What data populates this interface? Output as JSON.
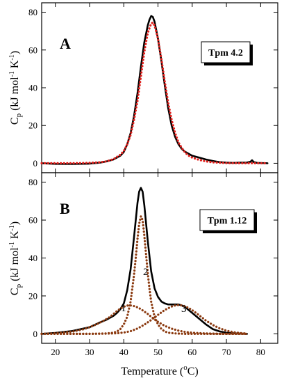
{
  "chart_data": [
    {
      "panel": "A",
      "type": "line",
      "label_box": "Tpm 4.2",
      "xlim": [
        16,
        85
      ],
      "ylim": [
        -5,
        85
      ],
      "yticks": [
        0,
        20,
        40,
        60,
        80
      ],
      "series": [
        {
          "style": "solid",
          "color": "#000000",
          "x": [
            16,
            20,
            25,
            30,
            33,
            35,
            37,
            39,
            40,
            41,
            42,
            43,
            44,
            45,
            46,
            47,
            47.5,
            48,
            48.5,
            49,
            50,
            51,
            52,
            53,
            54,
            55,
            56,
            57,
            58,
            59,
            60,
            62,
            64,
            66,
            68,
            70,
            72,
            74,
            76,
            77,
            77.5,
            78,
            79,
            82
          ],
          "y": [
            0,
            -0.3,
            -0.4,
            -0.2,
            0.3,
            1,
            2,
            4,
            6,
            10,
            16,
            25,
            37,
            51,
            64,
            73,
            76,
            78,
            77.5,
            75,
            66,
            54,
            41,
            29,
            20,
            14,
            10,
            7.5,
            6,
            5,
            4,
            3,
            2,
            1.2,
            0.6,
            0.3,
            0.2,
            0.3,
            0.4,
            0.8,
            1.6,
            0.6,
            0.2,
            0
          ]
        },
        {
          "style": "dotted",
          "color": "#e0201c",
          "x": [
            16,
            20,
            25,
            30,
            33,
            35,
            37,
            39,
            40,
            41,
            42,
            43,
            44,
            45,
            46,
            47,
            48,
            48.5,
            49,
            50,
            51,
            52,
            53,
            54,
            55,
            56,
            57,
            58,
            59,
            60,
            62,
            64,
            66,
            68,
            70,
            72,
            74,
            76,
            78,
            80,
            82
          ],
          "y": [
            0,
            0,
            0,
            0.2,
            0.5,
            1,
            2.2,
            4.5,
            6.5,
            10,
            15,
            23,
            33,
            46,
            59,
            69,
            74,
            74.5,
            73,
            66,
            55,
            43,
            32,
            23,
            16,
            11,
            8,
            5.5,
            4,
            3,
            1.8,
            1,
            0.5,
            0.3,
            0.1,
            0.1,
            0,
            0,
            0,
            0,
            0
          ]
        }
      ]
    },
    {
      "panel": "B",
      "type": "line",
      "label_box": "Tpm 1.12",
      "xlim": [
        16,
        85
      ],
      "ylim": [
        -5,
        85
      ],
      "xticks": [
        20,
        30,
        40,
        50,
        60,
        70,
        80
      ],
      "yticks": [
        0,
        20,
        40,
        60,
        80
      ],
      "component_labels": [
        "1",
        "2",
        "3"
      ],
      "series": [
        {
          "style": "solid",
          "color": "#000000",
          "x": [
            16,
            20,
            25,
            30,
            33,
            35,
            37,
            38,
            39,
            40,
            41,
            42,
            43,
            44,
            44.5,
            45,
            45.5,
            46,
            47,
            48,
            49,
            50,
            51,
            52,
            53,
            54,
            55,
            56,
            57,
            58,
            59,
            60,
            62,
            64,
            66,
            68,
            70,
            72,
            74,
            76
          ],
          "y": [
            0,
            0.5,
            1.5,
            3.5,
            6,
            7.5,
            9.5,
            11,
            13,
            16,
            23,
            34,
            51,
            69,
            75,
            77,
            75,
            68,
            49,
            33,
            24,
            19.5,
            17,
            16,
            15.5,
            15.5,
            15.5,
            15.5,
            15,
            14,
            12.5,
            11,
            8,
            5,
            2.5,
            1.3,
            0.6,
            0.3,
            0.1,
            0
          ]
        },
        {
          "name": "1",
          "style": "dotted",
          "color": "#8b3a10",
          "x": [
            16,
            20,
            25,
            28,
            30,
            32,
            34,
            36,
            37,
            38,
            39,
            40,
            41,
            42,
            43,
            44,
            45,
            46,
            47,
            48,
            49,
            50,
            52,
            54,
            56,
            58,
            60,
            62,
            64,
            66,
            68,
            70,
            72,
            74,
            76
          ],
          "y": [
            0,
            0.3,
            1.2,
            2.3,
            3.5,
            5,
            6.8,
            9,
            10.5,
            12,
            13.3,
            14.3,
            14.9,
            15,
            14.6,
            14,
            13,
            11.8,
            10.5,
            9,
            7.6,
            6.3,
            4.2,
            2.7,
            1.7,
            1,
            0.6,
            0.35,
            0.2,
            0.1,
            0.05,
            0,
            0,
            0,
            0
          ]
        },
        {
          "name": "2",
          "style": "dotted",
          "color": "#8b3a10",
          "x": [
            16,
            30,
            35,
            37,
            38,
            39,
            40,
            41,
            42,
            43,
            43.5,
            44,
            44.5,
            45,
            45.5,
            46,
            46.5,
            47,
            47.5,
            48,
            49,
            50,
            51,
            52,
            53,
            55,
            58,
            62,
            66,
            70,
            76
          ],
          "y": [
            0,
            0,
            0.2,
            0.6,
            1.2,
            2.5,
            5,
            9,
            17,
            31,
            40,
            50,
            58,
            62,
            60,
            52,
            42,
            32,
            24,
            17,
            9,
            5,
            2.5,
            1.2,
            0.6,
            0.2,
            0,
            0,
            0,
            0,
            0
          ]
        },
        {
          "name": "3",
          "style": "dotted",
          "color": "#8b3a10",
          "x": [
            16,
            30,
            35,
            38,
            40,
            42,
            44,
            46,
            48,
            50,
            52,
            54,
            55,
            56,
            57,
            58,
            59,
            60,
            61,
            62,
            63,
            64,
            66,
            68,
            70,
            72,
            74,
            76
          ],
          "y": [
            0,
            0,
            0.1,
            0.3,
            0.7,
            1.4,
            2.8,
            4.8,
            7.3,
            10,
            12.6,
            14.4,
            15,
            15.2,
            15,
            14.5,
            13.6,
            12.5,
            11.2,
            9.8,
            8.4,
            7,
            4.7,
            2.9,
            1.7,
            0.9,
            0.4,
            0.15
          ]
        }
      ]
    }
  ],
  "axes": {
    "ylabel_main": "C",
    "ylabel_sub": "p",
    "ylabel_units": " (kJ mol",
    "ylabel_exp1": "-1",
    "ylabel_mid": " K",
    "ylabel_exp2": "-1",
    "ylabel_end": ")",
    "xlabel_main": "Temperature (",
    "xlabel_sup": "o",
    "xlabel_end": "C)"
  }
}
